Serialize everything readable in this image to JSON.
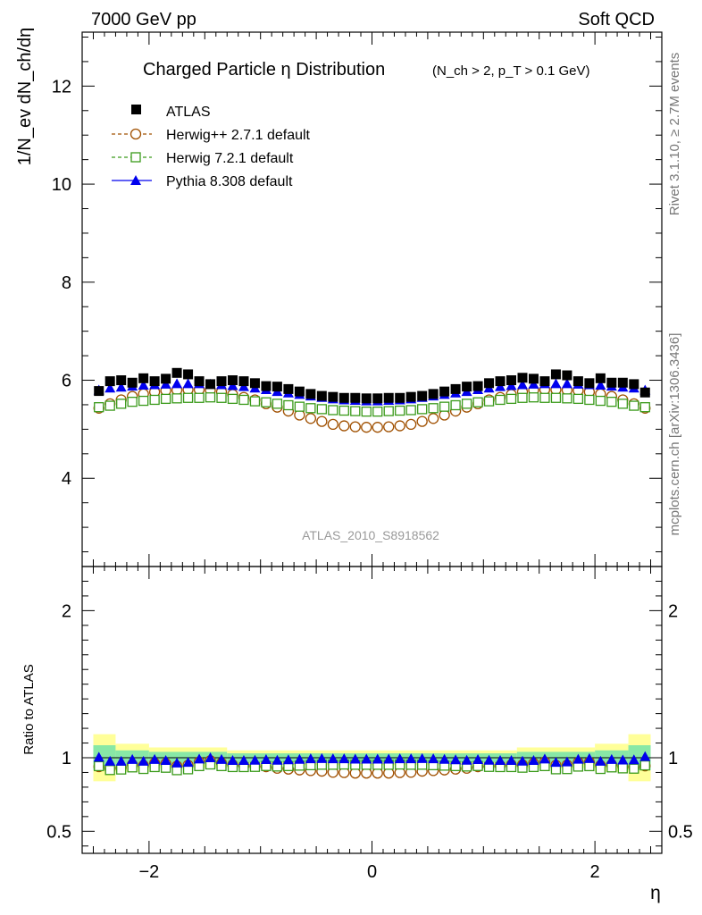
{
  "header": {
    "left": "7000 GeV pp",
    "right": "Soft QCD"
  },
  "side_labels": {
    "rivet": "Rivet 3.1.10, ≥ 2.7M events",
    "mcplots": "mcplots.cern.ch [arXiv:1306.3436]"
  },
  "watermark": "ATLAS_2010_S8918562",
  "chart_data": {
    "type": "scatter",
    "title": "Charged Particle η Distribution",
    "title_cut": "(N_ch > 2, p_T > 0.1 GeV)",
    "ylabel": "1/N_ev dN_ch/dη",
    "ratio_ylabel": "Ratio to ATLAS",
    "xlabel": "η",
    "xlim": [
      -2.6,
      2.6
    ],
    "ylim": [
      2.2,
      13.1
    ],
    "ratio_ylim": [
      0.35,
      2.3
    ],
    "x_ticks": [
      -2,
      0,
      2
    ],
    "y_ticks": [
      4,
      6,
      8,
      10,
      12
    ],
    "ratio_ticks": [
      0.5,
      1,
      2
    ],
    "x": [
      -2.45,
      -2.35,
      -2.25,
      -2.15,
      -2.05,
      -1.95,
      -1.85,
      -1.75,
      -1.65,
      -1.55,
      -1.45,
      -1.35,
      -1.25,
      -1.15,
      -1.05,
      -0.95,
      -0.85,
      -0.75,
      -0.65,
      -0.55,
      -0.45,
      -0.35,
      -0.25,
      -0.15,
      -0.05,
      0.05,
      0.15,
      0.25,
      0.35,
      0.45,
      0.55,
      0.65,
      0.75,
      0.85,
      0.95,
      1.05,
      1.15,
      1.25,
      1.35,
      1.45,
      1.55,
      1.65,
      1.75,
      1.85,
      1.95,
      2.05,
      2.15,
      2.25,
      2.35,
      2.45
    ],
    "legend": [
      "ATLAS",
      "Herwig++ 2.7.1 default",
      "Herwig 7.2.1 default",
      "Pythia 8.308 default"
    ],
    "series": [
      {
        "name": "ATLAS",
        "color": "#000000",
        "marker": "filled-square",
        "values": [
          5.78,
          5.98,
          6.0,
          5.95,
          6.04,
          5.98,
          6.03,
          6.15,
          6.12,
          5.98,
          5.92,
          5.98,
          6.0,
          5.98,
          5.94,
          5.88,
          5.87,
          5.82,
          5.77,
          5.72,
          5.68,
          5.66,
          5.64,
          5.64,
          5.63,
          5.63,
          5.64,
          5.64,
          5.66,
          5.68,
          5.72,
          5.77,
          5.82,
          5.87,
          5.88,
          5.94,
          5.98,
          6.0,
          6.05,
          6.03,
          5.98,
          6.12,
          6.1,
          5.98,
          5.94,
          6.04,
          5.95,
          5.95,
          5.92,
          5.75
        ]
      },
      {
        "name": "Herwig++ 2.7.1 default",
        "color": "#a05000",
        "marker": "open-circle",
        "values": [
          5.43,
          5.52,
          5.6,
          5.67,
          5.72,
          5.76,
          5.79,
          5.8,
          5.81,
          5.81,
          5.8,
          5.76,
          5.71,
          5.65,
          5.6,
          5.52,
          5.45,
          5.37,
          5.29,
          5.22,
          5.16,
          5.1,
          5.07,
          5.05,
          5.04,
          5.04,
          5.05,
          5.07,
          5.1,
          5.16,
          5.22,
          5.29,
          5.37,
          5.45,
          5.52,
          5.6,
          5.65,
          5.71,
          5.76,
          5.8,
          5.81,
          5.81,
          5.8,
          5.79,
          5.76,
          5.72,
          5.67,
          5.6,
          5.52,
          5.43
        ]
      },
      {
        "name": "Herwig 7.2.1 default",
        "color": "#3a9a1a",
        "marker": "open-square",
        "values": [
          5.45,
          5.48,
          5.52,
          5.56,
          5.58,
          5.6,
          5.62,
          5.63,
          5.64,
          5.64,
          5.65,
          5.64,
          5.62,
          5.6,
          5.57,
          5.55,
          5.52,
          5.49,
          5.46,
          5.43,
          5.41,
          5.39,
          5.38,
          5.37,
          5.36,
          5.36,
          5.37,
          5.38,
          5.39,
          5.41,
          5.43,
          5.46,
          5.49,
          5.52,
          5.55,
          5.57,
          5.6,
          5.62,
          5.64,
          5.65,
          5.64,
          5.64,
          5.63,
          5.62,
          5.6,
          5.58,
          5.56,
          5.52,
          5.48,
          5.45
        ]
      },
      {
        "name": "Pythia 8.308 default",
        "color": "#0000ee",
        "marker": "filled-triangle",
        "values": [
          5.8,
          5.84,
          5.86,
          5.88,
          5.9,
          5.91,
          5.92,
          5.93,
          5.93,
          5.93,
          5.92,
          5.91,
          5.89,
          5.87,
          5.84,
          5.81,
          5.77,
          5.74,
          5.71,
          5.68,
          5.65,
          5.62,
          5.6,
          5.59,
          5.58,
          5.58,
          5.59,
          5.6,
          5.62,
          5.65,
          5.68,
          5.71,
          5.74,
          5.77,
          5.81,
          5.84,
          5.87,
          5.89,
          5.91,
          5.92,
          5.93,
          5.93,
          5.93,
          5.92,
          5.91,
          5.9,
          5.88,
          5.86,
          5.84,
          5.8
        ]
      }
    ],
    "uncertainty_bands": {
      "edges": [
        -2.5,
        -2.3,
        -2.0,
        -1.3,
        1.3,
        2.0,
        2.3,
        2.5
      ],
      "green_halfwidth": [
        0.085,
        0.05,
        0.04,
        0.03,
        0.04,
        0.05,
        0.085
      ],
      "yellow_halfwidth": [
        0.16,
        0.095,
        0.07,
        0.05,
        0.07,
        0.095,
        0.16
      ]
    }
  }
}
